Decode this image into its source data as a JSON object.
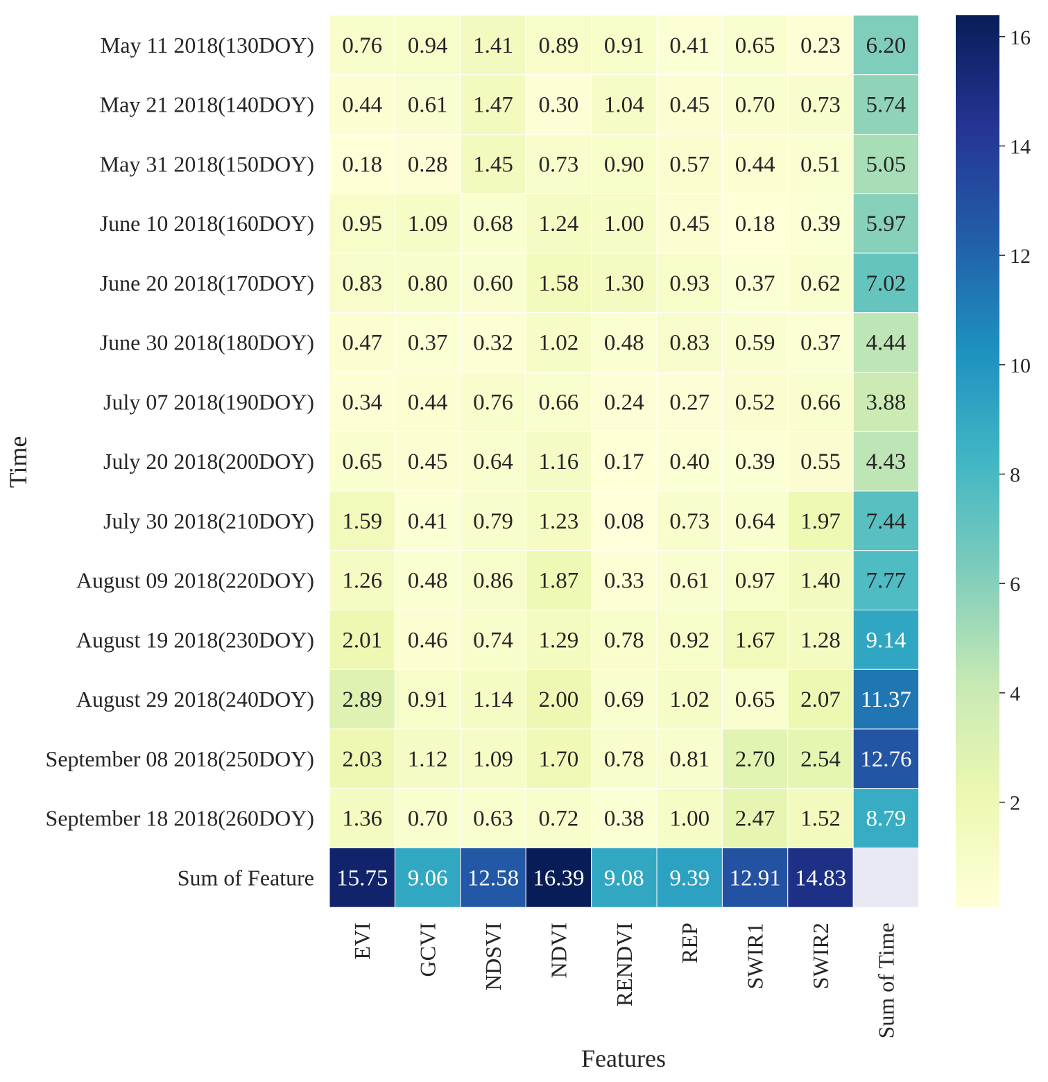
{
  "chart_data": {
    "type": "heatmap",
    "xlabel": "Features",
    "ylabel": "Time",
    "x_categories": [
      "EVI",
      "GCVI",
      "NDSVI",
      "NDVI",
      "RENDVI",
      "REP",
      "SWIR1",
      "SWIR2",
      "Sum of Time"
    ],
    "y_categories": [
      "May 11 2018(130DOY)",
      "May 21 2018(140DOY)",
      "May 31 2018(150DOY)",
      "June 10 2018(160DOY)",
      "June 20 2018(170DOY)",
      "June 30 2018(180DOY)",
      "July 07 2018(190DOY)",
      "July 20 2018(200DOY)",
      "July 30 2018(210DOY)",
      "August 09 2018(220DOY)",
      "August 19 2018(230DOY)",
      "August 29 2018(240DOY)",
      "September 08 2018(250DOY)",
      "September 18 2018(260DOY)",
      "Sum of Feature"
    ],
    "values": [
      [
        0.76,
        0.94,
        1.41,
        0.89,
        0.91,
        0.41,
        0.65,
        0.23,
        6.2
      ],
      [
        0.44,
        0.61,
        1.47,
        0.3,
        1.04,
        0.45,
        0.7,
        0.73,
        5.74
      ],
      [
        0.18,
        0.28,
        1.45,
        0.73,
        0.9,
        0.57,
        0.44,
        0.51,
        5.05
      ],
      [
        0.95,
        1.09,
        0.68,
        1.24,
        1.0,
        0.45,
        0.18,
        0.39,
        5.97
      ],
      [
        0.83,
        0.8,
        0.6,
        1.58,
        1.3,
        0.93,
        0.37,
        0.62,
        7.02
      ],
      [
        0.47,
        0.37,
        0.32,
        1.02,
        0.48,
        0.83,
        0.59,
        0.37,
        4.44
      ],
      [
        0.34,
        0.44,
        0.76,
        0.66,
        0.24,
        0.27,
        0.52,
        0.66,
        3.88
      ],
      [
        0.65,
        0.45,
        0.64,
        1.16,
        0.17,
        0.4,
        0.39,
        0.55,
        4.43
      ],
      [
        1.59,
        0.41,
        0.79,
        1.23,
        0.08,
        0.73,
        0.64,
        1.97,
        7.44
      ],
      [
        1.26,
        0.48,
        0.86,
        1.87,
        0.33,
        0.61,
        0.97,
        1.4,
        7.77
      ],
      [
        2.01,
        0.46,
        0.74,
        1.29,
        0.78,
        0.92,
        1.67,
        1.28,
        9.14
      ],
      [
        2.89,
        0.91,
        1.14,
        2.0,
        0.69,
        1.02,
        0.65,
        2.07,
        11.37
      ],
      [
        2.03,
        1.12,
        1.09,
        1.7,
        0.78,
        0.81,
        2.7,
        2.54,
        12.76
      ],
      [
        1.36,
        0.7,
        0.63,
        0.72,
        0.38,
        1.0,
        2.47,
        1.52,
        8.79
      ],
      [
        15.75,
        9.06,
        12.58,
        16.39,
        9.08,
        9.39,
        12.91,
        14.83,
        null
      ]
    ],
    "value_format": "0.00",
    "colormap": "YlGnBu",
    "vmin": 0.08,
    "vmax": 16.39,
    "colorbar_ticks": [
      2,
      4,
      6,
      8,
      10,
      12,
      14,
      16
    ],
    "missing_color": "#e8e9f2",
    "grid_color": "#ffffff"
  }
}
